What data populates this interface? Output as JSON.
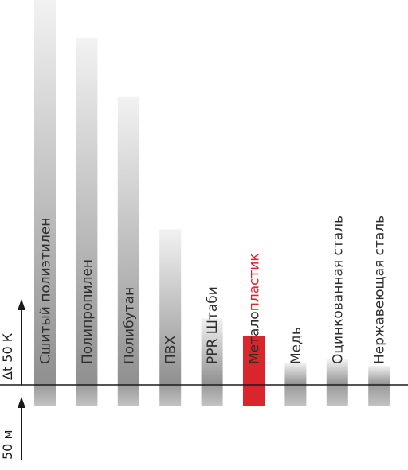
{
  "chart_data": {
    "type": "bar",
    "title": "",
    "xlabel": "",
    "ylabel": "Δt 50 К",
    "x_axis_note": "50 м",
    "ylim": [
      0,
      485
    ],
    "categories": [
      "Сшитый полиэтилен",
      "Полипропилен",
      "Полибутан",
      "ПВХ",
      "PPR Штаби",
      "Металлопластик",
      "Медь",
      "Оцинкованная сталь",
      "Нержавеющая сталь"
    ],
    "values": [
      485,
      437,
      363,
      196,
      84,
      62,
      28,
      32,
      24
    ],
    "label_parts": [
      [
        {
          "text": "Сшитый полиэтилен"
        }
      ],
      [
        {
          "text": "Полипропилен"
        }
      ],
      [
        {
          "text": "Полибутан"
        }
      ],
      [
        {
          "text": "ПВХ"
        }
      ],
      [
        {
          "text": "PPR Штаби"
        }
      ],
      [
        {
          "text": "Метало",
          "color": "#2f2f2f"
        },
        {
          "text": "пластик",
          "color": "#d9262c"
        }
      ],
      [
        {
          "text": "Медь"
        }
      ],
      [
        {
          "text": "Оцинкованная сталь"
        }
      ],
      [
        {
          "text": "Нержавеющая сталь"
        }
      ]
    ],
    "highlight_index": 5,
    "colors": {
      "bar_top": "#f2f2f2",
      "bar_bottom": "#8f8f8f",
      "highlight": "#d9262c",
      "axis": "#1a1a1a",
      "label": "#2f2f2f"
    }
  }
}
